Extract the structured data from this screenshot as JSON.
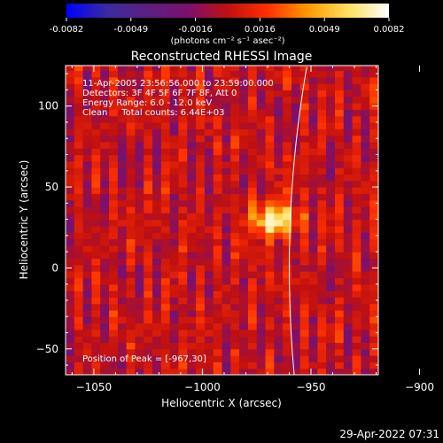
{
  "chart_data": [
    {
      "type": "colorbar",
      "min": -0.0082,
      "max": 0.0082,
      "ticks": [
        "-0.0082",
        "-0.0049",
        "-0.0016",
        "0.0016",
        "0.0049",
        "0.0082"
      ],
      "unit_label": "(photons cm⁻² s⁻¹ asec⁻²)",
      "colormap": [
        "#0000ff",
        "#3a2aa0",
        "#5a2080",
        "#7a1070",
        "#c01010",
        "#ff3000",
        "#ff9a00",
        "#ffe060",
        "#ffffff"
      ]
    },
    {
      "type": "heatmap",
      "title": "Reconstructed RHESSI Image",
      "xlabel": "Heliocentric X (arcsec)",
      "ylabel": "Heliocentric Y (arcsec)",
      "xlim": [
        -1063,
        -919
      ],
      "ylim": [
        -66,
        125
      ],
      "xticks": [
        -1050,
        -1000,
        -950,
        -900
      ],
      "yticks": [
        -50,
        0,
        50,
        100
      ],
      "xtick_labels": [
        "−1050",
        "−1000",
        "−950",
        "−900"
      ],
      "ytick_labels": [
        "−50",
        "0",
        "50",
        "100"
      ],
      "pixel_size": 4,
      "peak": [
        -967,
        30
      ],
      "peak_intensity": 0.0082,
      "stripe_period": 8,
      "limb_radius": 960,
      "annotations": [
        "11-Apr-2005 23:56:56.000 to 23:59:00.000",
        "Detectors: 3F 4F 5F 6F 7F 8F, Att 0",
        "Energy Range: 6.0 - 12.0 keV",
        "Clean     Total counts: 6.44E+03"
      ],
      "peak_label": "Position of Peak = [-967,30]"
    }
  ],
  "footer": {
    "timestamp": "29-Apr-2022 07:31"
  }
}
